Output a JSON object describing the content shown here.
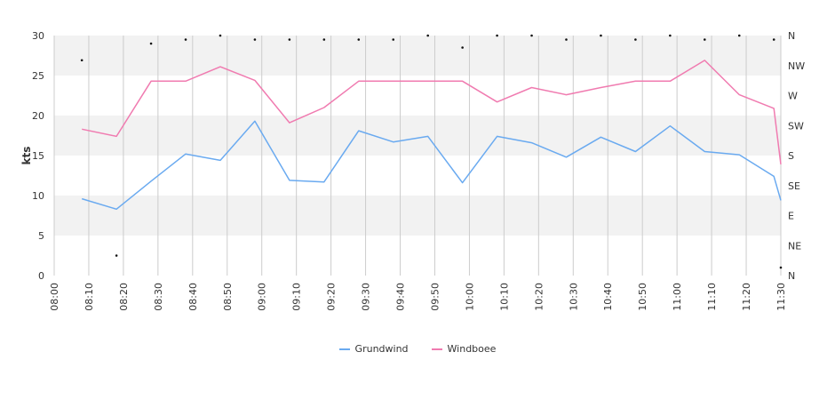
{
  "chart_data": {
    "type": "line",
    "title": "",
    "ylabel": "kts",
    "y2label": "",
    "ylim": [
      0,
      30
    ],
    "yticks": [
      0,
      5,
      10,
      15,
      20,
      25,
      30
    ],
    "direction_ticks": [
      "N",
      "NE",
      "E",
      "SE",
      "S",
      "SW",
      "W",
      "NW",
      "N"
    ],
    "direction_range_deg": [
      0,
      360
    ],
    "x_ticks": [
      "08:00",
      "08:10",
      "08:20",
      "08:30",
      "08:40",
      "08:50",
      "09:00",
      "09:10",
      "09:20",
      "09:30",
      "09:40",
      "09:50",
      "10:00",
      "10:10",
      "10:20",
      "10:30",
      "10:40",
      "10:50",
      "11:00",
      "11:10",
      "11:20",
      "11:30"
    ],
    "x_range": [
      "08:00",
      "11:30"
    ],
    "x": [
      "08:08",
      "08:18",
      "08:28",
      "08:38",
      "08:48",
      "08:58",
      "09:08",
      "09:18",
      "09:28",
      "09:38",
      "09:48",
      "09:58",
      "10:08",
      "10:18",
      "10:28",
      "10:38",
      "10:48",
      "10:58",
      "11:08",
      "11:18",
      "11:28",
      "11:30"
    ],
    "series": [
      {
        "name": "Grundwind",
        "color": "#6aaaf0",
        "values": [
          9.6,
          8.3,
          11.8,
          15.2,
          14.4,
          19.3,
          11.9,
          11.7,
          18.1,
          16.7,
          17.4,
          11.6,
          17.4,
          16.6,
          14.8,
          17.3,
          15.5,
          18.7,
          15.5,
          15.1,
          12.4,
          9.4
        ]
      },
      {
        "name": "Windboee",
        "color": "#f07bb0",
        "values": [
          18.3,
          17.4,
          24.3,
          24.3,
          26.1,
          24.4,
          19.1,
          21.0,
          24.3,
          24.3,
          24.3,
          24.3,
          21.7,
          23.5,
          22.6,
          23.5,
          24.3,
          24.3,
          26.9,
          22.6,
          20.9,
          13.9
        ]
      }
    ],
    "direction_points": {
      "x": [
        "08:08",
        "08:18",
        "08:28",
        "08:38",
        "08:48",
        "08:58",
        "09:08",
        "09:18",
        "09:28",
        "09:38",
        "09:48",
        "09:58",
        "10:08",
        "10:18",
        "10:28",
        "10:38",
        "10:48",
        "10:58",
        "11:08",
        "11:18",
        "11:28",
        "11:30"
      ],
      "deg": [
        323,
        30,
        348,
        354,
        360,
        354,
        354,
        354,
        354,
        354,
        360,
        342,
        360,
        360,
        354,
        360,
        354,
        360,
        354,
        360,
        354,
        12
      ]
    },
    "grid": true,
    "legend_position": "bottom-center"
  },
  "colors": {
    "band_fill": "#f2f2f2",
    "grid_line": "#cccccc",
    "marker": "#111111"
  }
}
